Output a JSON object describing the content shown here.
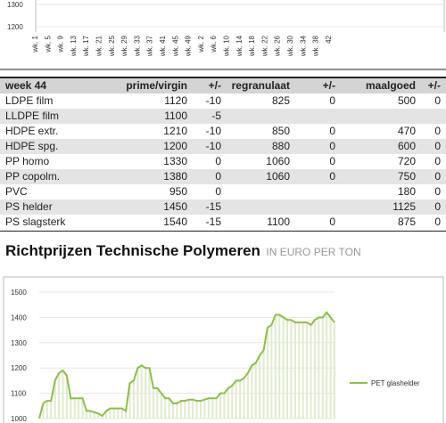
{
  "top_chart": {
    "type": "line",
    "ylim": [
      1200,
      1300
    ],
    "yticks": [
      1300,
      1200
    ],
    "categories": [
      "wk. 1",
      "wk. 5",
      "wk. 9",
      "wk. 13",
      "wk. 17",
      "wk. 21",
      "wk. 25",
      "wk. 29",
      "wk. 33",
      "wk. 37",
      "wk. 41",
      "wk. 45",
      "wk. 49",
      "wk. 2",
      "wk. 6",
      "wk. 10",
      "wk. 14",
      "wk. 18",
      "wk. 22",
      "wk. 26",
      "wk. 30",
      "wk. 34",
      "wk. 38",
      "42"
    ]
  },
  "table": {
    "header": [
      "week 44",
      "prime/virgin",
      "+/-",
      "regranulaat",
      "+/-",
      "maalgoed",
      "+/-"
    ],
    "rows": [
      [
        "LDPE film",
        1120,
        -10,
        825,
        0,
        500,
        0
      ],
      [
        "LLDPE film",
        1100,
        -5,
        null,
        null,
        null,
        null
      ],
      [
        "HDPE extr.",
        1210,
        -10,
        850,
        0,
        470,
        0
      ],
      [
        "HDPE spg.",
        1200,
        -10,
        880,
        0,
        600,
        0
      ],
      [
        "PP homo",
        1330,
        0,
        1060,
        0,
        720,
        0
      ],
      [
        "PP copolm.",
        1380,
        0,
        1060,
        0,
        750,
        0
      ],
      [
        "PVC",
        950,
        0,
        null,
        null,
        180,
        0
      ],
      [
        "PS helder",
        1450,
        -15,
        null,
        null,
        1125,
        0
      ],
      [
        "PS slagsterk",
        1540,
        -15,
        1100,
        0,
        875,
        0
      ]
    ]
  },
  "heading": {
    "title": "Richtprijzen Technische Polymeren",
    "unit": "IN EURO PER TON"
  },
  "bottom_chart": {
    "type": "line",
    "ylim": [
      1000,
      1500
    ],
    "yticks": [
      1500,
      1400,
      1300,
      1200,
      1100,
      1000
    ],
    "series": [
      {
        "name": "PET glashelder",
        "color": "#8cbf4a",
        "values": [
          1000,
          1060,
          1070,
          1070,
          1150,
          1180,
          1190,
          1170,
          1080,
          1080,
          1080,
          1080,
          1030,
          1030,
          1025,
          1020,
          1010,
          1030,
          1040,
          1040,
          1040,
          1040,
          1030,
          1140,
          1150,
          1200,
          1210,
          1200,
          1200,
          1120,
          1120,
          1100,
          1080,
          1080,
          1060,
          1060,
          1070,
          1070,
          1075,
          1075,
          1070,
          1070,
          1075,
          1080,
          1080,
          1080,
          1100,
          1100,
          1120,
          1130,
          1150,
          1150,
          1160,
          1180,
          1210,
          1220,
          1250,
          1270,
          1360,
          1370,
          1410,
          1410,
          1400,
          1390,
          1390,
          1380,
          1380,
          1380,
          1380,
          1370,
          1390,
          1400,
          1400,
          1420,
          1400,
          1380
        ]
      }
    ]
  }
}
